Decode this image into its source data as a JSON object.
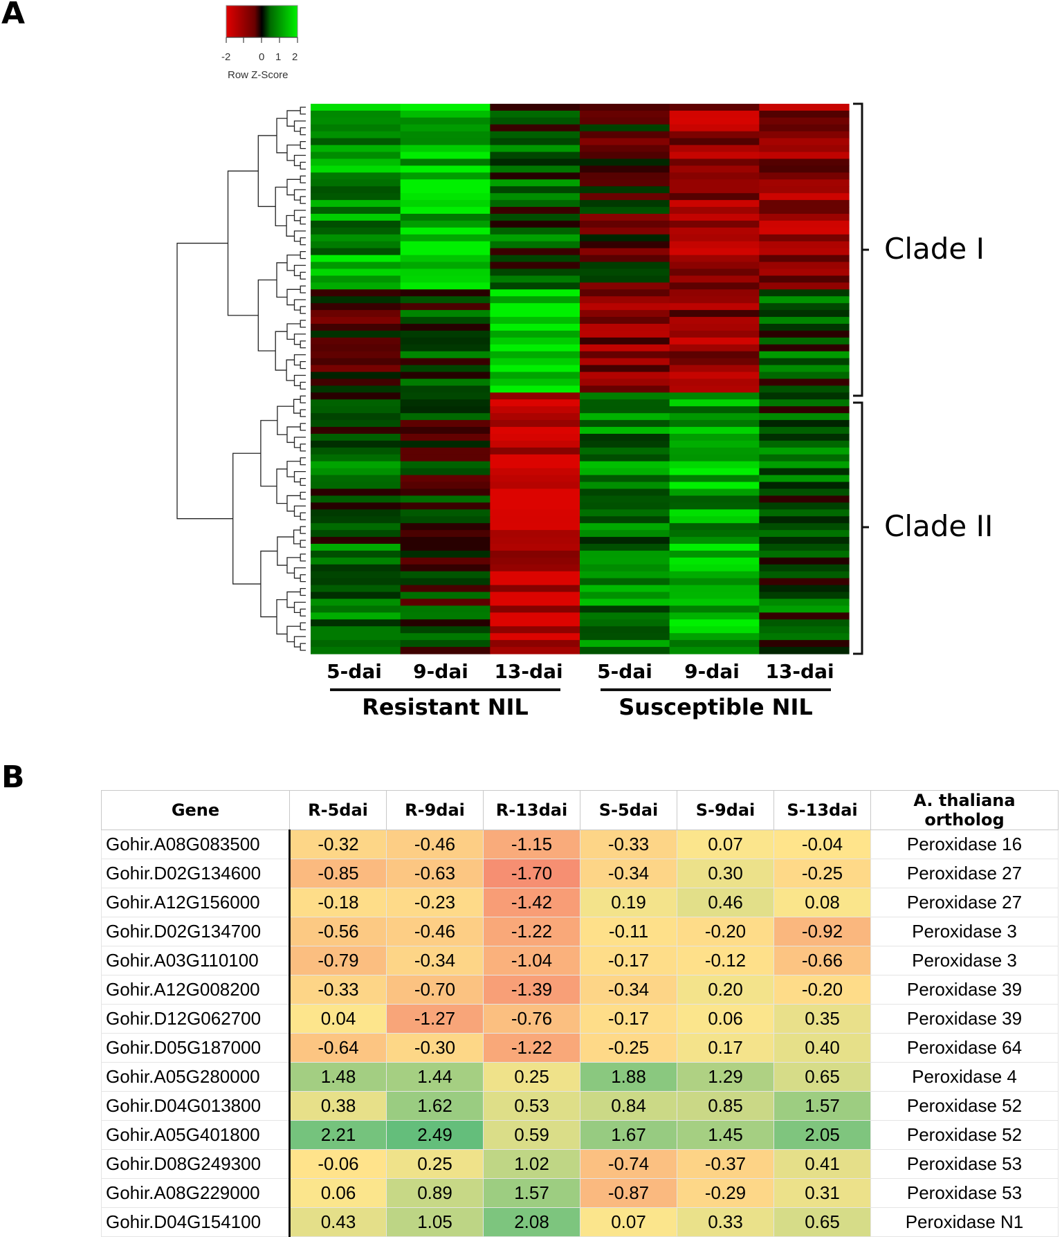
{
  "panel_a_label": "A",
  "panel_b_label": "B",
  "legend": {
    "title": "Row Z-Score",
    "ticks": [
      "-2",
      "0",
      "1",
      "2"
    ],
    "colors": {
      "low": "#d10000",
      "mid": "#000000",
      "high": "#00ee00"
    }
  },
  "heatmap": {
    "column_labels": [
      "5-dai",
      "9-dai",
      "13-dai",
      "5-dai",
      "9-dai",
      "13-dai"
    ],
    "groups": [
      "Resistant NIL",
      "Susceptible NIL"
    ],
    "clades": [
      "Clade I",
      "Clade II"
    ]
  },
  "chart_data": [
    {
      "type": "heatmap",
      "x": [
        "5-dai",
        "9-dai",
        "13-dai",
        "5-dai",
        "9-dai",
        "13-dai"
      ],
      "groups": [
        "Resistant NIL",
        "Susceptible NIL"
      ],
      "clades": [
        "Clade I",
        "Clade II"
      ],
      "legend_title": "Row Z-Score",
      "color_scale": {
        "min": -2,
        "max": 2,
        "ticks": [
          -2,
          0,
          1,
          2
        ]
      },
      "blocks": [
        {
          "rows": "Clade I upper (rows 1-27)",
          "R-5dai": 1.2,
          "R-9dai": 1.5,
          "R-13dai": 0.5,
          "S-5dai": -0.3,
          "S-9dai": -1.3,
          "S-13dai": -1.2
        },
        {
          "rows": "Clade I lower (rows 28-42)",
          "R-5dai": -0.4,
          "R-9dai": 0.2,
          "R-13dai": 2.0,
          "S-5dai": -1.0,
          "S-9dai": -1.1,
          "S-13dai": 0.4
        },
        {
          "rows": "Clade II (rows 43-80)",
          "R-5dai": 0.6,
          "R-9dai": 0.1,
          "R-13dai": -1.8,
          "S-5dai": 0.8,
          "S-9dai": 1.3,
          "S-13dai": 0.5
        }
      ]
    },
    {
      "type": "table",
      "columns": [
        "Gene",
        "R-5dai",
        "R-9dai",
        "R-13dai",
        "S-5dai",
        "S-9dai",
        "S-13dai",
        "A. thaliana ortholog"
      ],
      "rows": [
        {
          "gene": "Gohir.A08G083500",
          "values": [
            "-0.32",
            "-0.46",
            "-1.15",
            "-0.33",
            "0.07",
            "-0.04"
          ],
          "ortholog": "Peroxidase 16"
        },
        {
          "gene": "Gohir.D02G134600",
          "values": [
            "-0.85",
            "-0.63",
            "-1.70",
            "-0.34",
            "0.30",
            "-0.25"
          ],
          "ortholog": "Peroxidase 27"
        },
        {
          "gene": "Gohir.A12G156000",
          "values": [
            "-0.18",
            "-0.23",
            "-1.42",
            "0.19",
            "0.46",
            "0.08"
          ],
          "ortholog": "Peroxidase 27"
        },
        {
          "gene": "Gohir.D02G134700",
          "values": [
            "-0.56",
            "-0.46",
            "-1.22",
            "-0.11",
            "-0.20",
            "-0.92"
          ],
          "ortholog": "Peroxidase 3"
        },
        {
          "gene": "Gohir.A03G110100",
          "values": [
            "-0.79",
            "-0.34",
            "-1.04",
            "-0.17",
            "-0.12",
            "-0.66"
          ],
          "ortholog": "Peroxidase 3"
        },
        {
          "gene": "Gohir.A12G008200",
          "values": [
            "-0.33",
            "-0.70",
            "-1.39",
            "-0.34",
            "0.20",
            "-0.20"
          ],
          "ortholog": "Peroxidase 39"
        },
        {
          "gene": "Gohir.D12G062700",
          "values": [
            "0.04",
            "-1.27",
            "-0.76",
            "-0.17",
            "0.06",
            "0.35"
          ],
          "ortholog": "Peroxidase 39"
        },
        {
          "gene": "Gohir.D05G187000",
          "values": [
            "-0.64",
            "-0.30",
            "-1.22",
            "-0.25",
            "0.17",
            "0.40"
          ],
          "ortholog": "Peroxidase 64"
        },
        {
          "gene": "Gohir.A05G280000",
          "values": [
            "1.48",
            "1.44",
            "0.25",
            "1.88",
            "1.29",
            "0.65"
          ],
          "ortholog": "Peroxidase 4"
        },
        {
          "gene": "Gohir.D04G013800",
          "values": [
            "0.38",
            "1.62",
            "0.53",
            "0.84",
            "0.85",
            "1.57"
          ],
          "ortholog": "Peroxidase 52"
        },
        {
          "gene": "Gohir.A05G401800",
          "values": [
            "2.21",
            "2.49",
            "0.59",
            "1.67",
            "1.45",
            "2.05"
          ],
          "ortholog": "Peroxidase 52"
        },
        {
          "gene": "Gohir.D08G249300",
          "values": [
            "-0.06",
            "0.25",
            "1.02",
            "-0.74",
            "-0.37",
            "0.41"
          ],
          "ortholog": "Peroxidase 53"
        },
        {
          "gene": "Gohir.A08G229000",
          "values": [
            "0.06",
            "0.89",
            "1.57",
            "-0.87",
            "-0.29",
            "0.31"
          ],
          "ortholog": "Peroxidase 53"
        },
        {
          "gene": "Gohir.D04G154100",
          "values": [
            "0.43",
            "1.05",
            "2.08",
            "0.07",
            "0.33",
            "0.65"
          ],
          "ortholog": "Peroxidase N1"
        }
      ]
    }
  ]
}
